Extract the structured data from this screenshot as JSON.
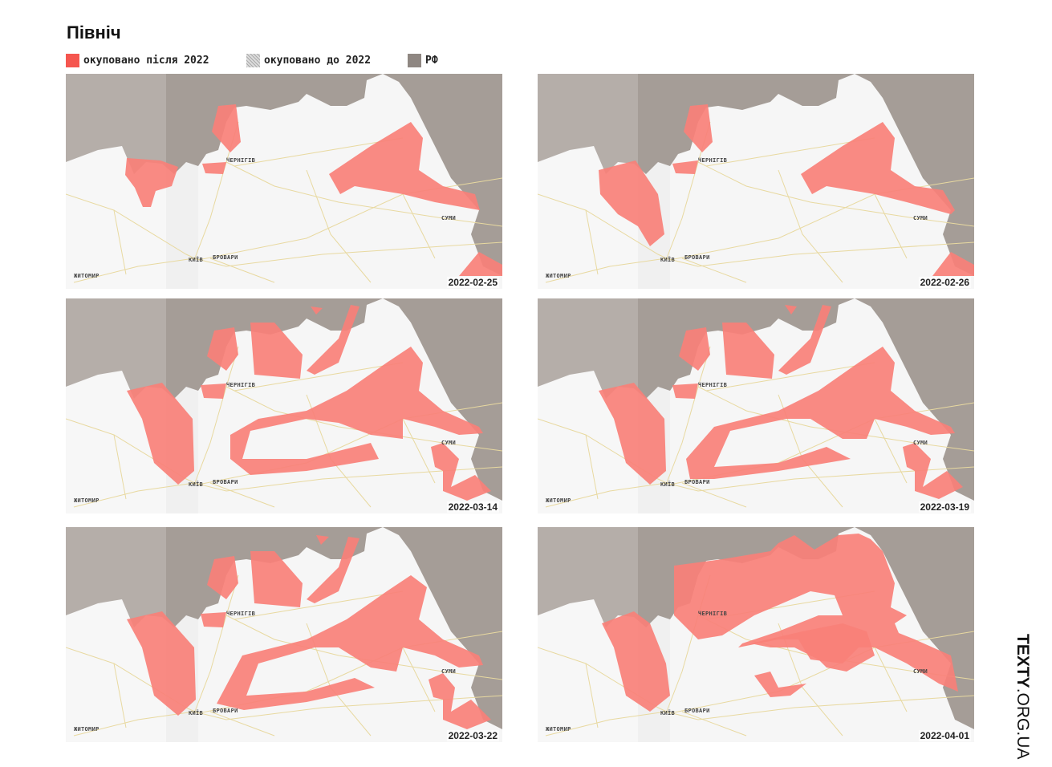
{
  "title": "Північ",
  "legend": [
    {
      "label": "окуповано після 2022",
      "color": "#f5564f",
      "pattern": "solid"
    },
    {
      "label": "окуповано до 2022",
      "color": "#bdbdbd",
      "pattern": "hatched"
    },
    {
      "label": "РФ",
      "color": "#8f8782",
      "pattern": "solid"
    }
  ],
  "colors": {
    "occupied": "#f98078",
    "russia": "#a59d97",
    "land": "#f6f6f6",
    "roads": "#e8d9a0"
  },
  "cities": {
    "chernihiv": "ЧЕРНІГІВ",
    "sumy": "СУМИ",
    "kyiv": "КИЇВ",
    "brovary": "БРОВАРИ",
    "zhytomyr": "ЖИТОМИР"
  },
  "panels": [
    {
      "date": "2022-02-25"
    },
    {
      "date": "2022-02-26"
    },
    {
      "date": "2022-03-14"
    },
    {
      "date": "2022-03-19"
    },
    {
      "date": "2022-03-22"
    },
    {
      "date": "2022-04-01"
    }
  ],
  "brand": {
    "bold": "TEXTY",
    "rest": ".ORG.UA"
  }
}
